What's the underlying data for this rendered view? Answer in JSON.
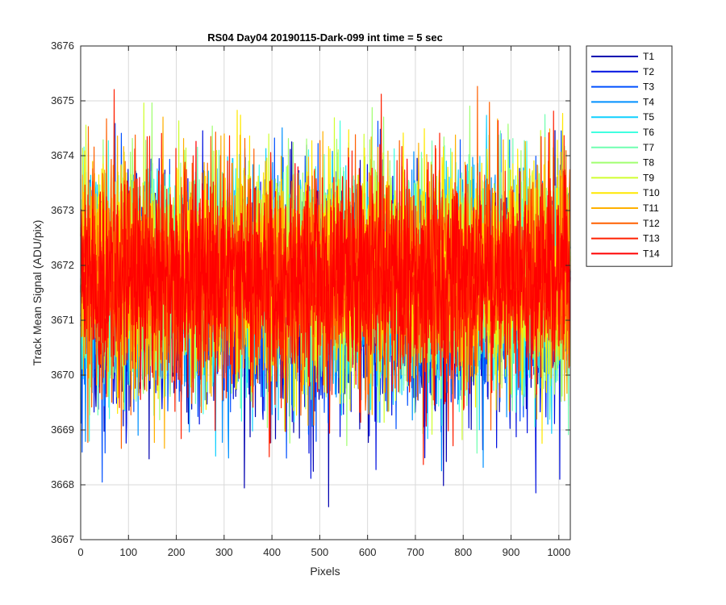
{
  "chart_data": {
    "type": "line",
    "title": "RS04 Day04 20190115-Dark-099 int time = 5 sec",
    "xlabel": "Pixels",
    "ylabel": "Track Mean Signal (ADU/pix)",
    "xlim": [
      0,
      1024
    ],
    "ylim": [
      3667,
      3676
    ],
    "xticks": [
      "0",
      "100",
      "200",
      "300",
      "400",
      "500",
      "600",
      "700",
      "800",
      "900",
      "1000"
    ],
    "yticks": [
      "3667",
      "3668",
      "3669",
      "3670",
      "3671",
      "3672",
      "3673",
      "3674",
      "3675",
      "3676"
    ],
    "grid": true,
    "legend_position": "outside-top-right",
    "n_points": 1024,
    "series": [
      {
        "name": "T1",
        "color": "#0000b0",
        "mean": 3671.3,
        "noise_sd": 1.0
      },
      {
        "name": "T2",
        "color": "#0010e0",
        "mean": 3671.35,
        "noise_sd": 1.0
      },
      {
        "name": "T3",
        "color": "#0050ff",
        "mean": 3671.5,
        "noise_sd": 1.0
      },
      {
        "name": "T4",
        "color": "#0090ff",
        "mean": 3671.6,
        "noise_sd": 1.0
      },
      {
        "name": "T5",
        "color": "#10d0ff",
        "mean": 3671.7,
        "noise_sd": 1.0
      },
      {
        "name": "T6",
        "color": "#40ffe0",
        "mean": 3671.75,
        "noise_sd": 1.0
      },
      {
        "name": "T7",
        "color": "#70ffb0",
        "mean": 3671.8,
        "noise_sd": 1.0
      },
      {
        "name": "T8",
        "color": "#a0ff70",
        "mean": 3671.85,
        "noise_sd": 1.0
      },
      {
        "name": "T9",
        "color": "#d0ff30",
        "mean": 3671.9,
        "noise_sd": 1.0
      },
      {
        "name": "T10",
        "color": "#ffe800",
        "mean": 3671.95,
        "noise_sd": 1.0
      },
      {
        "name": "T11",
        "color": "#ffb000",
        "mean": 3671.9,
        "noise_sd": 1.0
      },
      {
        "name": "T12",
        "color": "#ff6000",
        "mean": 3671.85,
        "noise_sd": 1.0
      },
      {
        "name": "T13",
        "color": "#ff2000",
        "mean": 3671.8,
        "noise_sd": 1.0
      },
      {
        "name": "T14",
        "color": "#ff0000",
        "mean": 3671.8,
        "noise_sd": 0.85
      }
    ]
  }
}
